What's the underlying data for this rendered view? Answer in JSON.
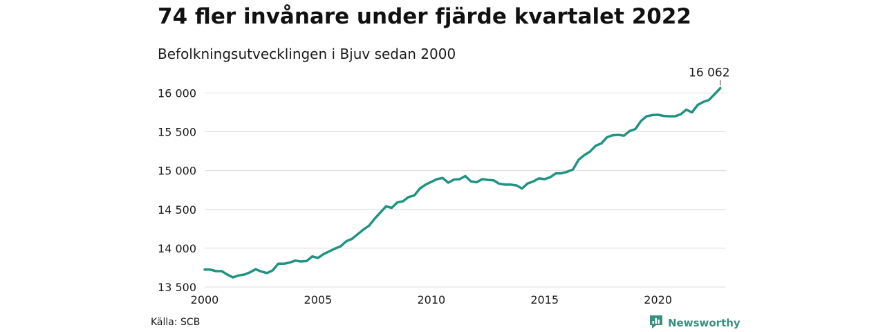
{
  "title": "74 fler invånare under fjärde kvartalet 2022",
  "subtitle": "Befolkningsutvecklingen i Bjuv sedan 2000",
  "source": "Källa: SCB",
  "brand": {
    "name": "Newsworthy",
    "icon": "newsworthy-logo-icon",
    "color": "#3a8f80"
  },
  "colors": {
    "line": "#1f9383",
    "grid": "#dcdcdc"
  },
  "chart_data": {
    "type": "line",
    "title": "74 fler invånare under fjärde kvartalet 2022",
    "subtitle": "Befolkningsutvecklingen i Bjuv sedan 2000",
    "xlabel": "",
    "ylabel": "",
    "xlim": [
      2000,
      2023
    ],
    "ylim": [
      13500,
      16200
    ],
    "xticks": [
      2000,
      2005,
      2010,
      2015,
      2020
    ],
    "xtick_labels": [
      "2000",
      "2005",
      "2010",
      "2015",
      "2020"
    ],
    "yticks": [
      13500,
      14000,
      14500,
      15000,
      15500,
      16000
    ],
    "ytick_labels": [
      "13 500",
      "14 000",
      "14 500",
      "15 000",
      "15 500",
      "16 000"
    ],
    "grid": true,
    "annotation": {
      "x": 2022.75,
      "y": 16062,
      "label": "16 062"
    },
    "series": [
      {
        "x": [
          2000.0,
          2000.25,
          2000.5,
          2000.75,
          2001.0,
          2001.25,
          2001.5,
          2001.75,
          2002.0,
          2002.25,
          2002.5,
          2002.75,
          2003.0,
          2003.25,
          2003.5,
          2003.75,
          2004.0,
          2004.25,
          2004.5,
          2004.75,
          2005.0,
          2005.25,
          2005.5,
          2005.75,
          2006.0,
          2006.25,
          2006.5,
          2006.75,
          2007.0,
          2007.25,
          2007.5,
          2007.75,
          2008.0,
          2008.25,
          2008.5,
          2008.75,
          2009.0,
          2009.25,
          2009.5,
          2009.75,
          2010.0,
          2010.25,
          2010.5,
          2010.75,
          2011.0,
          2011.25,
          2011.5,
          2011.75,
          2012.0,
          2012.25,
          2012.5,
          2012.75,
          2013.0,
          2013.25,
          2013.5,
          2013.75,
          2014.0,
          2014.25,
          2014.5,
          2014.75,
          2015.0,
          2015.25,
          2015.5,
          2015.75,
          2016.0,
          2016.25,
          2016.5,
          2016.75,
          2017.0,
          2017.25,
          2017.5,
          2017.75,
          2018.0,
          2018.25,
          2018.5,
          2018.75,
          2019.0,
          2019.25,
          2019.5,
          2019.75,
          2020.0,
          2020.25,
          2020.5,
          2020.75,
          2021.0,
          2021.25,
          2021.5,
          2021.75,
          2022.0,
          2022.25,
          2022.5,
          2022.75
        ],
        "values": [
          13725,
          13725,
          13705,
          13705,
          13660,
          13625,
          13650,
          13660,
          13690,
          13730,
          13700,
          13680,
          13715,
          13800,
          13800,
          13815,
          13840,
          13830,
          13835,
          13895,
          13875,
          13925,
          13960,
          13995,
          14025,
          14090,
          14120,
          14180,
          14240,
          14290,
          14380,
          14460,
          14540,
          14520,
          14590,
          14605,
          14660,
          14680,
          14770,
          14820,
          14855,
          14890,
          14905,
          14845,
          14885,
          14890,
          14930,
          14860,
          14850,
          14890,
          14880,
          14875,
          14830,
          14820,
          14820,
          14810,
          14770,
          14835,
          14860,
          14900,
          14890,
          14915,
          14965,
          14965,
          14985,
          15015,
          15140,
          15200,
          15245,
          15320,
          15350,
          15430,
          15455,
          15460,
          15450,
          15510,
          15535,
          15640,
          15700,
          15715,
          15720,
          15705,
          15700,
          15700,
          15725,
          15785,
          15750,
          15845,
          15885,
          15910,
          15985,
          16062
        ]
      }
    ]
  }
}
